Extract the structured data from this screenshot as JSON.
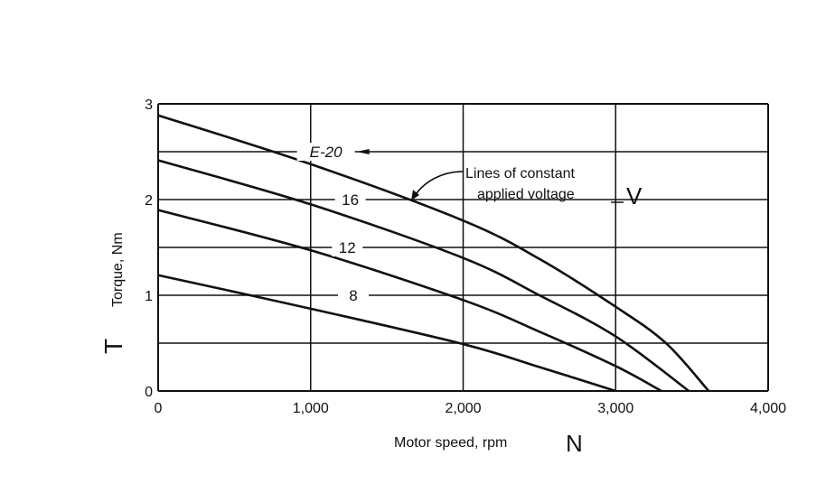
{
  "chart_data": {
    "type": "line",
    "title": "",
    "xlabel": "Motor speed, rpm",
    "xlabel_handwritten": "N",
    "ylabel": "Torque, Nm",
    "ylabel_handwritten": "T",
    "xlim": [
      0,
      4000
    ],
    "ylim": [
      0,
      3
    ],
    "x_ticks": [
      0,
      1000,
      2000,
      3000,
      4000
    ],
    "x_tick_labels": [
      "0",
      "1,000",
      "2,000",
      "3,000",
      "4,000"
    ],
    "y_ticks": [
      0,
      1,
      2,
      3
    ],
    "y_tick_labels": [
      "0",
      "1",
      "2",
      "3"
    ],
    "grid": true,
    "series": [
      {
        "name": "E = 20",
        "label": "E-20",
        "x": [
          0,
          1000,
          2000,
          2500,
          3000,
          3330,
          3610
        ],
        "y": [
          2.88,
          2.37,
          1.78,
          1.38,
          0.88,
          0.5,
          0
        ]
      },
      {
        "name": "E = 16",
        "label": "16",
        "x": [
          0,
          1000,
          2000,
          2500,
          3000,
          3480
        ],
        "y": [
          2.41,
          1.95,
          1.39,
          1.0,
          0.57,
          0
        ]
      },
      {
        "name": "E = 12",
        "label": "12",
        "x": [
          0,
          1000,
          2000,
          2500,
          3000,
          3300
        ],
        "y": [
          1.89,
          1.47,
          0.95,
          0.62,
          0.26,
          0
        ]
      },
      {
        "name": "E = 8",
        "label": "8",
        "x": [
          0,
          1000,
          2000,
          2500,
          3000
        ],
        "y": [
          1.21,
          0.86,
          0.49,
          0.25,
          0
        ]
      }
    ],
    "annotations": {
      "line1": "Lines of constant",
      "line2": "applied voltage",
      "handwritten": "V"
    }
  }
}
